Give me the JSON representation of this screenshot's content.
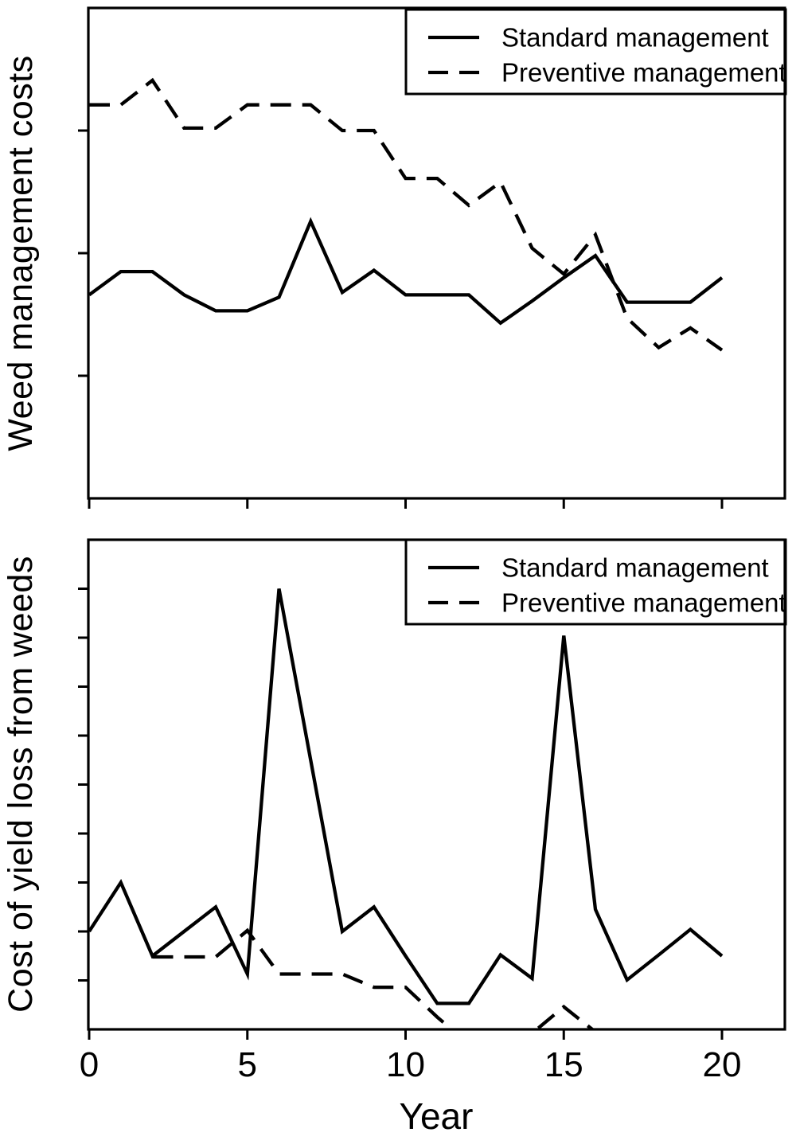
{
  "figure": {
    "background_color": "#ffffff",
    "ink_color": "#000000",
    "description": "Two stacked line-chart panels comparing weed management strategies over 20 years"
  },
  "x_axis": {
    "label": "Year",
    "tick_labels": [
      "0",
      "5",
      "10",
      "15",
      "20"
    ],
    "tick_years": [
      0,
      5,
      10,
      15,
      20
    ],
    "range": [
      0,
      20
    ]
  },
  "legend": {
    "entries": [
      {
        "label": "Standard management",
        "style": "solid"
      },
      {
        "label": "Preventive management",
        "style": "dashed"
      }
    ],
    "position": "top-right"
  },
  "panels": [
    {
      "y_label": "Weed management costs"
    },
    {
      "y_label": "Cost of yield loss from weeds"
    }
  ],
  "chart_data": [
    {
      "type": "line",
      "title": "",
      "xlabel": "Year",
      "ylabel": "Weed management costs",
      "x": [
        0,
        1,
        2,
        3,
        4,
        5,
        6,
        7,
        8,
        9,
        10,
        11,
        12,
        13,
        14,
        15,
        16,
        17,
        18,
        19,
        20
      ],
      "ylim": [
        0,
        4
      ],
      "y_units": "relative cost (axis unlabeled, tick units)",
      "grid": false,
      "legend_position": "top-right",
      "series": [
        {
          "name": "Standard management",
          "line": "solid",
          "values": [
            1.66,
            1.85,
            1.85,
            1.66,
            1.53,
            1.53,
            1.64,
            2.26,
            1.68,
            1.86,
            1.66,
            1.66,
            1.66,
            1.43,
            1.61,
            1.8,
            1.98,
            1.6,
            1.6,
            1.6,
            1.8
          ]
        },
        {
          "name": "Preventive management",
          "line": "dashed",
          "values": [
            3.21,
            3.21,
            3.41,
            3.02,
            3.02,
            3.21,
            3.21,
            3.21,
            3.0,
            3.0,
            2.61,
            2.61,
            2.39,
            2.58,
            2.04,
            1.83,
            2.15,
            1.47,
            1.23,
            1.39,
            1.21
          ]
        }
      ]
    },
    {
      "type": "line",
      "title": "",
      "xlabel": "Year",
      "ylabel": "Cost of yield loss from weeds",
      "x": [
        0,
        1,
        2,
        3,
        4,
        5,
        6,
        7,
        8,
        9,
        10,
        11,
        12,
        13,
        14,
        15,
        16,
        17,
        18,
        19,
        20
      ],
      "ylim": [
        0,
        10
      ],
      "y_units": "relative cost (axis unlabeled, tick units)",
      "grid": false,
      "legend_position": "top-right",
      "series": [
        {
          "name": "Standard management",
          "line": "solid",
          "values": [
            2.0,
            3.0,
            1.5,
            2.0,
            2.5,
            1.13,
            9.0,
            5.5,
            2.0,
            2.5,
            1.5,
            0.53,
            0.53,
            1.52,
            1.04,
            8.04,
            2.45,
            1.01,
            1.52,
            2.04,
            1.5
          ]
        },
        {
          "name": "Preventive management",
          "line": "dashed",
          "values": [
            null,
            null,
            1.48,
            1.48,
            1.48,
            2.02,
            1.13,
            1.13,
            1.13,
            0.86,
            0.86,
            0.25,
            -0.3,
            -0.3,
            -0.08,
            0.46,
            -0.05,
            -0.4,
            -0.4,
            -0.4,
            -0.4
          ]
        }
      ]
    }
  ]
}
